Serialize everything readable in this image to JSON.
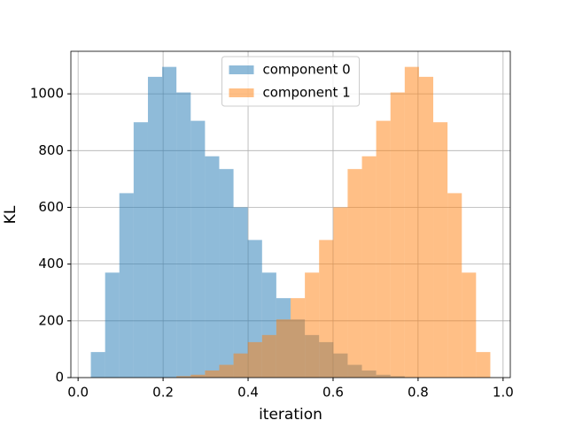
{
  "chart_data": {
    "type": "histogram",
    "x_label": "iteration",
    "y_label": "KL",
    "bins": [
      0.03,
      0.0636,
      0.0971,
      0.1307,
      0.1643,
      0.1979,
      0.2314,
      0.265,
      0.2986,
      0.3321,
      0.3657,
      0.3993,
      0.4329,
      0.4664,
      0.5,
      0.5336,
      0.5671,
      0.6007,
      0.6343,
      0.6679,
      0.7014,
      0.735,
      0.7686,
      0.8021,
      0.8357,
      0.8693,
      0.9029,
      0.9364,
      0.97
    ],
    "series": [
      {
        "name": "component 0",
        "color": "#1f77b4",
        "alpha": 0.5,
        "values": [
          90,
          370,
          650,
          900,
          1060,
          1095,
          1005,
          905,
          780,
          735,
          600,
          485,
          370,
          280,
          205,
          150,
          125,
          85,
          45,
          25,
          10,
          5,
          0,
          0,
          0,
          0,
          0,
          0
        ]
      },
      {
        "name": "component 1",
        "color": "#ff7f0e",
        "alpha": 0.5,
        "values": [
          0,
          0,
          0,
          0,
          0,
          0,
          5,
          10,
          25,
          45,
          85,
          125,
          150,
          205,
          280,
          370,
          485,
          600,
          735,
          780,
          905,
          1005,
          1095,
          1060,
          900,
          650,
          370,
          90
        ]
      }
    ],
    "xlim": [
      -0.017,
      1.017
    ],
    "ylim": [
      0,
      1150
    ],
    "xticks": [
      {
        "value": 0.0,
        "label": "0.0"
      },
      0.2,
      0.4,
      0.6,
      0.8,
      {
        "value": 1.0,
        "label": "1.0"
      }
    ],
    "yticks": [
      0,
      200,
      400,
      600,
      800,
      1000
    ],
    "grid": true,
    "legend": "upper center"
  }
}
